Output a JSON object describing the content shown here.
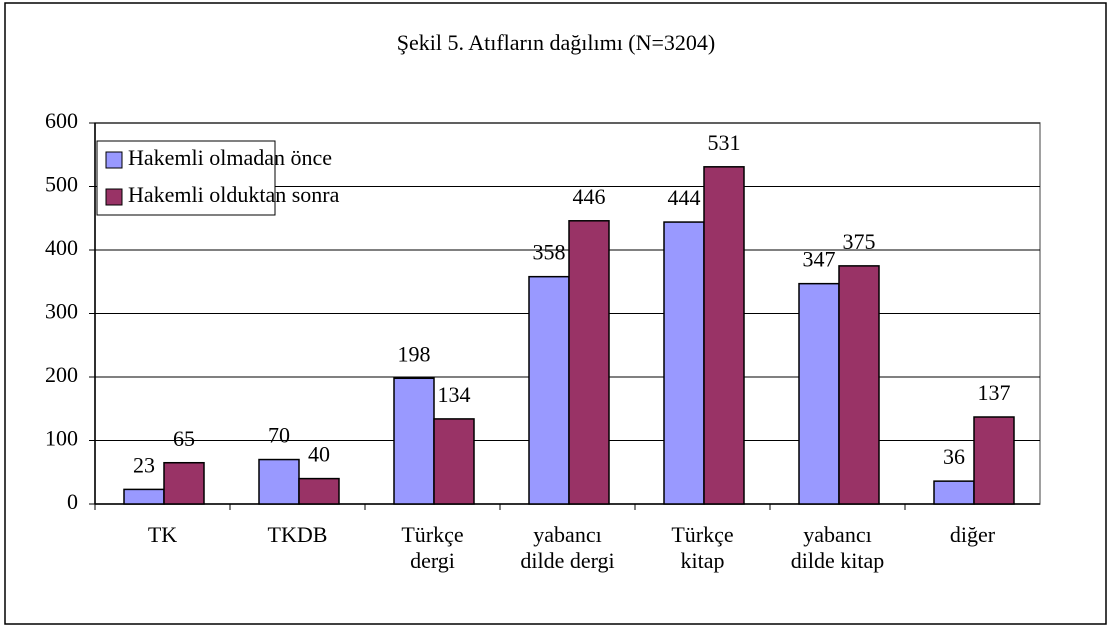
{
  "chart_data": {
    "type": "bar",
    "title": "Şekil 5. Atıfların dağılımı (N=3204)",
    "categories": [
      "TK",
      "TKDB",
      "Türkçe dergi",
      "yabancı dilde dergi",
      "Türkçe kitap",
      "yabancı dilde kitap",
      "diğer"
    ],
    "series": [
      {
        "name": "Hakemli olmadan önce",
        "color": "#9999ff",
        "values": [
          23,
          70,
          198,
          358,
          444,
          347,
          36
        ]
      },
      {
        "name": "Hakemli olduktan sonra",
        "color": "#993366",
        "values": [
          65,
          40,
          134,
          446,
          531,
          375,
          137
        ]
      }
    ],
    "ylim": [
      0,
      600
    ],
    "yticks": [
      0,
      100,
      200,
      300,
      400,
      500,
      600
    ],
    "grid": true,
    "legend": "top-left"
  }
}
